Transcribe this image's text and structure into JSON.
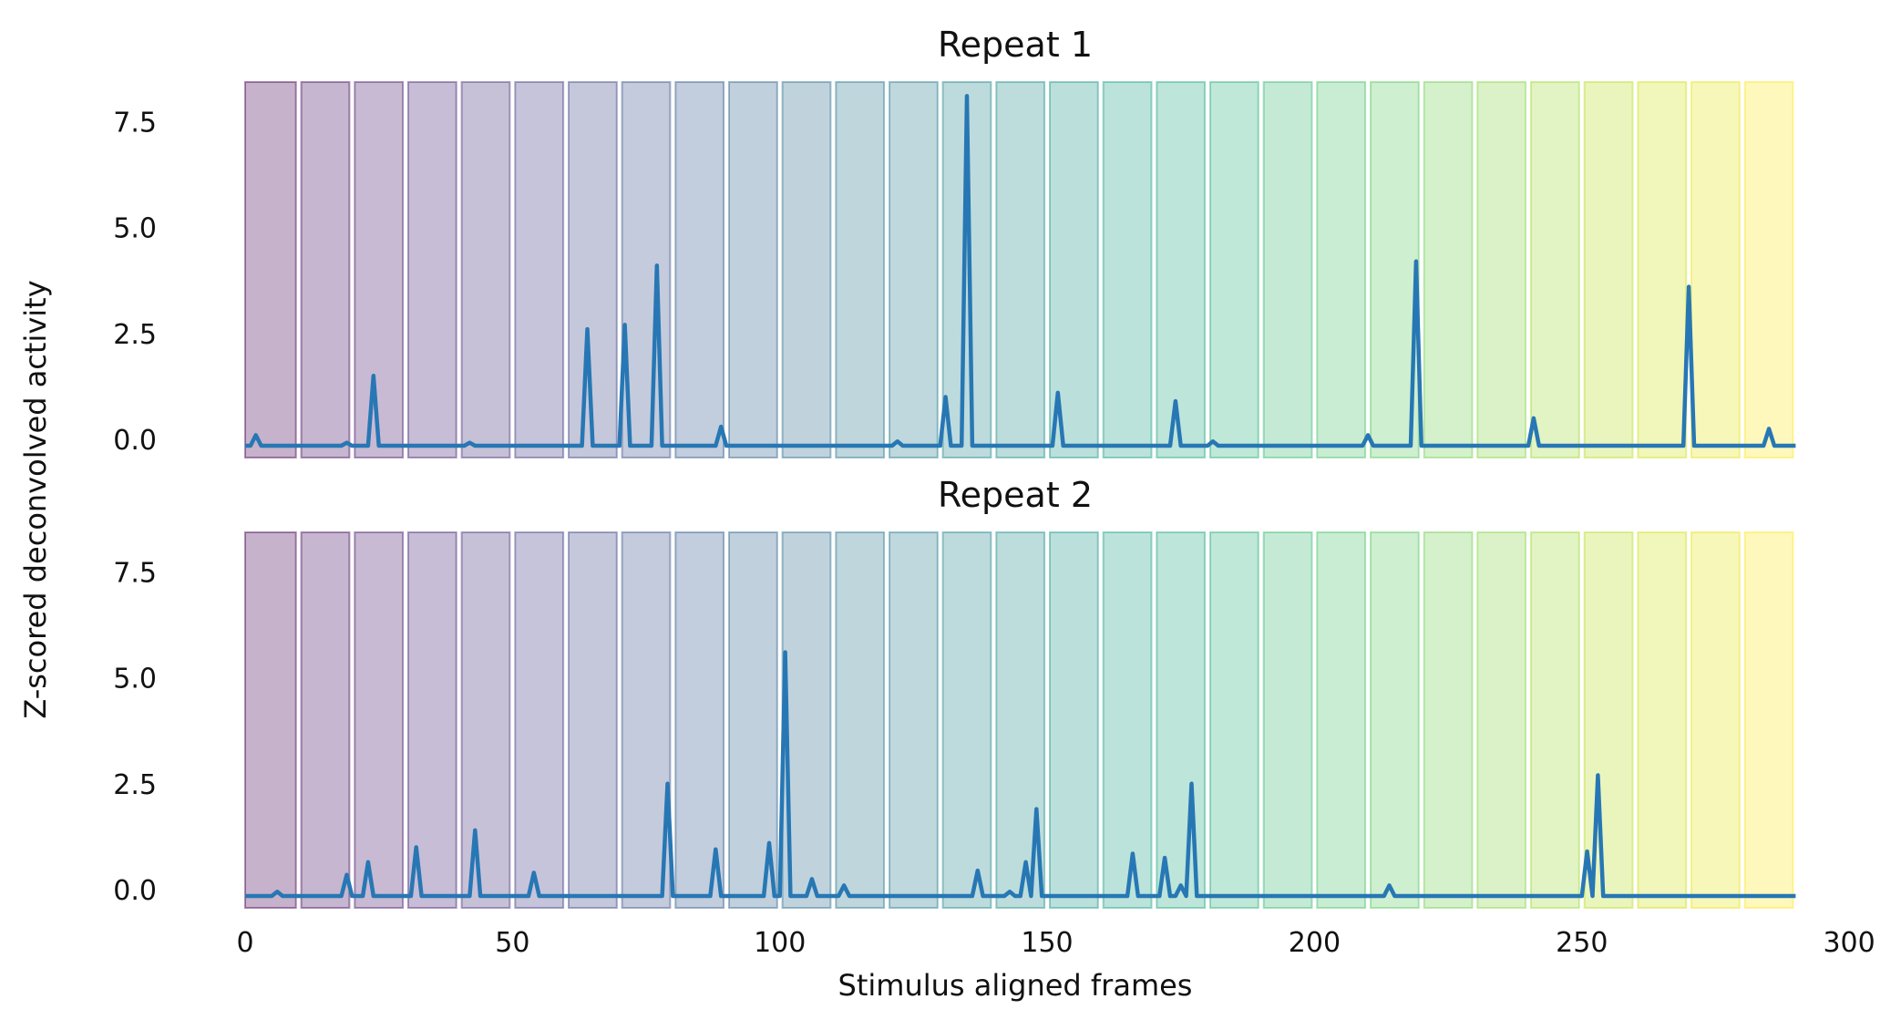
{
  "figure": {
    "ylabel": "Z-scored deconvolved activity",
    "xlabel": "Stimulus aligned frames"
  },
  "colors": {
    "line": "#2777b4",
    "bands": [
      "#440154",
      "#481467",
      "#482576",
      "#453781",
      "#3f4788",
      "#39558c",
      "#32648e",
      "#2d718e",
      "#287d8e",
      "#238a8d",
      "#1f968b",
      "#20a386",
      "#29af7f",
      "#3dbc74",
      "#56c667",
      "#75d054",
      "#95d840",
      "#bade28",
      "#dde318",
      "#fde725"
    ]
  },
  "chart_data": [
    {
      "type": "line",
      "title": "Repeat 1",
      "xlim": [
        0,
        300
      ],
      "ylim": [
        -0.5,
        8.2
      ],
      "xticks": [
        "0",
        "50",
        "100",
        "150",
        "200",
        "250",
        "300"
      ],
      "yticks": [
        "0.0",
        "2.5",
        "5.0",
        "7.5"
      ],
      "ytick_values": [
        0,
        2.5,
        5,
        7.5
      ],
      "bands": {
        "start": 0,
        "width": 10,
        "gap": 1,
        "count": 29
      },
      "baseline": -0.15,
      "x_end": 290,
      "peaks": [
        [
          2,
          0.1
        ],
        [
          19,
          -0.08
        ],
        [
          24,
          1.5
        ],
        [
          42,
          -0.08
        ],
        [
          64,
          2.6
        ],
        [
          71,
          2.7
        ],
        [
          77,
          4.1
        ],
        [
          89,
          0.3
        ],
        [
          122,
          -0.05
        ],
        [
          131,
          1.0
        ],
        [
          135,
          8.1
        ],
        [
          152,
          1.1
        ],
        [
          174,
          0.9
        ],
        [
          181,
          -0.05
        ],
        [
          210,
          0.1
        ],
        [
          219,
          4.2
        ],
        [
          241,
          0.5
        ],
        [
          270,
          3.6
        ],
        [
          285,
          0.25
        ]
      ]
    },
    {
      "type": "line",
      "title": "Repeat 2",
      "xlim": [
        0,
        300
      ],
      "ylim": [
        -0.5,
        8.2
      ],
      "xticks": [
        "0",
        "50",
        "100",
        "150",
        "200",
        "250",
        "300"
      ],
      "yticks": [
        "0.0",
        "2.5",
        "5.0",
        "7.5"
      ],
      "ytick_values": [
        0,
        2.5,
        5,
        7.5
      ],
      "bands": {
        "start": 0,
        "width": 10,
        "gap": 1,
        "count": 29
      },
      "baseline": -0.15,
      "x_end": 290,
      "peaks": [
        [
          6,
          -0.05
        ],
        [
          19,
          0.35
        ],
        [
          23,
          0.65
        ],
        [
          32,
          1.0
        ],
        [
          43,
          1.4
        ],
        [
          54,
          0.4
        ],
        [
          79,
          2.5
        ],
        [
          88,
          0.95
        ],
        [
          98,
          1.1
        ],
        [
          101,
          5.6
        ],
        [
          106,
          0.25
        ],
        [
          112,
          0.1
        ],
        [
          137,
          0.45
        ],
        [
          143,
          -0.05
        ],
        [
          146,
          0.65
        ],
        [
          148,
          1.9
        ],
        [
          166,
          0.85
        ],
        [
          172,
          0.75
        ],
        [
          175,
          0.1
        ],
        [
          177,
          2.5
        ],
        [
          214,
          0.1
        ],
        [
          251,
          0.9
        ],
        [
          253,
          2.7
        ]
      ]
    }
  ]
}
